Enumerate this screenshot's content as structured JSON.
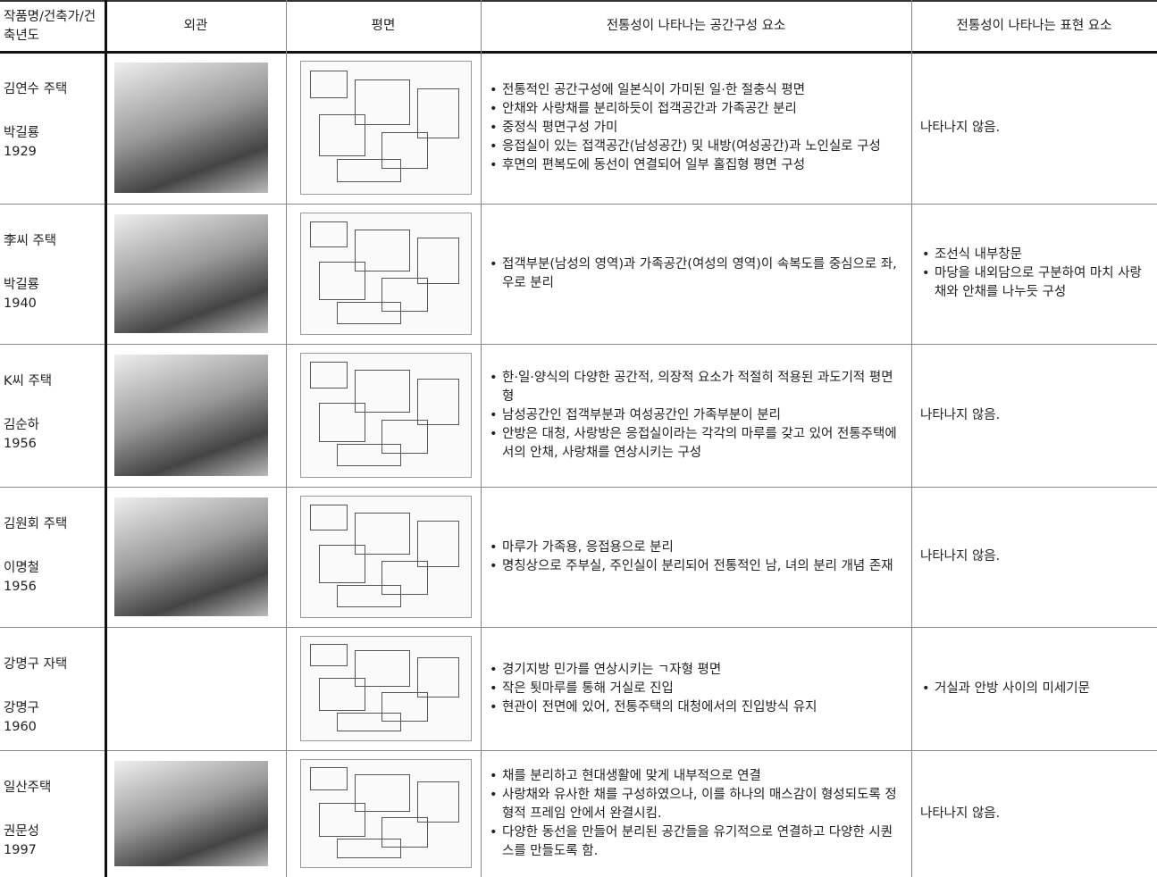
{
  "table": {
    "headers": [
      "작품명/건축가/건축년도",
      "외관",
      "평면",
      "전통성이 나타나는 공간구성 요소",
      "전통성이 나타나는 표현 요소"
    ],
    "rows": [
      {
        "name": "김연수 주택",
        "architect": "박길룡",
        "year": 1929,
        "space": [
          "전통적인 공간구성에 일본식이 가미된 일·한 절충식 평면",
          "안채와 사랑채를 분리하듯이 접객공간과 가족공간 분리",
          "중정식 평면구성 가미",
          "응접실이 있는 접객공간(남성공간) 및 내방(여성공간)과 노인실로 구성",
          "후면의 편복도에 동선이 연결되어 일부 홀집형 평면 구성"
        ],
        "expression": "나타나지 않음."
      },
      {
        "name": "李씨 주택",
        "architect": "박길룡",
        "year": 1940,
        "space": [
          "접객부분(남성의 영역)과 가족공간(여성의 영역)이 속복도를 중심으로 좌, 우로 분리"
        ],
        "expression": [
          "조선식 내부창문",
          "마당을 내외담으로 구분하여 마치 사랑채와 안채를 나누듯 구성"
        ]
      },
      {
        "name": "K씨 주택",
        "architect": "김순하",
        "year": 1956,
        "space": [
          "한·일·양식의 다양한 공간적, 의장적 요소가 적절히 적용된 과도기적 평면형",
          "남성공간인 접객부분과 여성공간인 가족부분이 분리",
          "안방은 대청, 사랑방은 응접실이라는 각각의 마루를 갖고 있어 전통주택에서의 안채, 사랑채를 연상시키는 구성"
        ],
        "expression": "나타나지 않음."
      },
      {
        "name": "김원회 주택",
        "architect": "이명철",
        "year": 1956,
        "space": [
          "마루가 가족용, 응접용으로 분리",
          "명칭상으로 주부실, 주인실이 분리되어 전통적인 남, 녀의 분리 개념 존재"
        ],
        "expression": "나타나지 않음."
      },
      {
        "name": "강명구 자택",
        "architect": "강명구",
        "year": 1960,
        "space": [
          "경기지방 민가를 연상시키는 ㄱ자형 평면",
          "작은 툇마루를 통해 거실로 진입",
          "현관이 전면에 있어, 전통주택의 대청에서의 진입방식 유지"
        ],
        "expression": [
          "거실과 안방 사이의 미세기문"
        ]
      },
      {
        "name": "일산주택",
        "architect": "권문성",
        "year": 1997,
        "space": [
          "채를 분리하고 현대생활에 맞게 내부적으로 연결",
          "사랑채와 유사한 채를 구성하였으나, 이를 하나의 매스감이 형성되도록 정형적 프레임 안에서 완결시킴.",
          "다양한 동선을 만들어 분리된 공간들을 유기적으로 연결하고 다양한 시퀀스를 만들도록 함."
        ],
        "expression": "나타나지 않음."
      }
    ]
  }
}
